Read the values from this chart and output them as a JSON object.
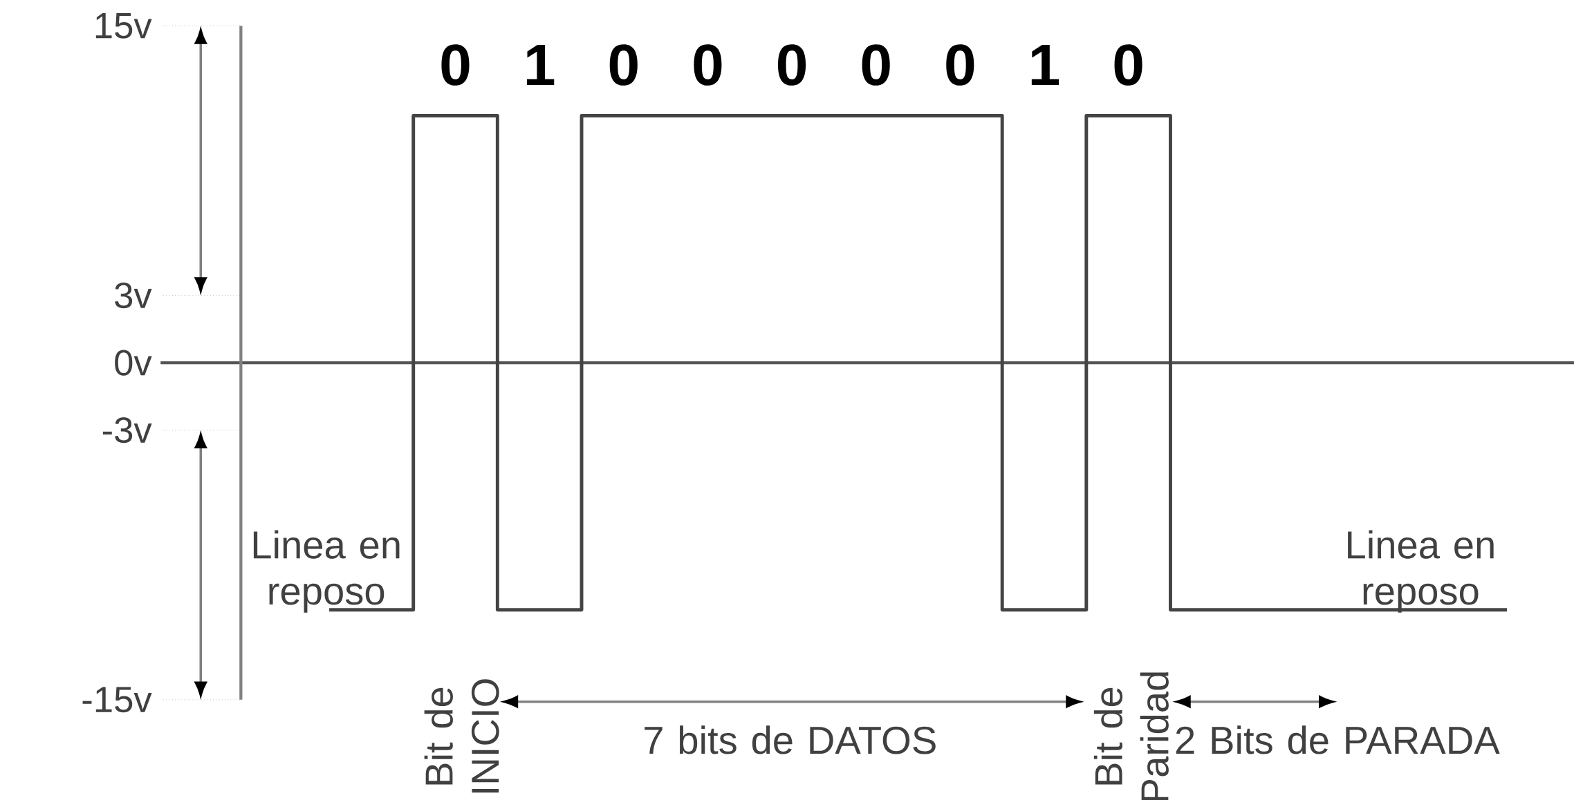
{
  "chart_data": {
    "type": "step",
    "categories": [
      null,
      null,
      null,
      null,
      null,
      null,
      null,
      null,
      null,
      null,
      null,
      null,
      null,
      null,
      null
    ],
    "values": [
      -11,
      11,
      -11,
      11,
      11,
      11,
      11,
      11,
      -11,
      11,
      -11,
      -11,
      -11,
      -11,
      -11
    ],
    "color": "#444444",
    "ylim": [
      -19.5,
      16
    ],
    "yticks": [
      {
        "value": 15,
        "label": "15v"
      },
      {
        "value": 3,
        "label": "3v"
      },
      {
        "value": 0,
        "label": "0v"
      },
      {
        "value": -3,
        "label": "-3v"
      },
      {
        "value": -15,
        "label": "-15v"
      }
    ],
    "ref_lines": [
      {
        "axis": "y",
        "value": 0,
        "color": "#555555"
      }
    ],
    "annotations": [
      "0",
      "1",
      "0",
      "0",
      "0",
      "0",
      "0",
      "1",
      "0",
      "Linea en reposo",
      "Linea en reposo",
      "Bit de INICIO",
      "7 bits de DATOS",
      "Bit de Paridad",
      "2 Bits de PARADA"
    ]
  }
}
